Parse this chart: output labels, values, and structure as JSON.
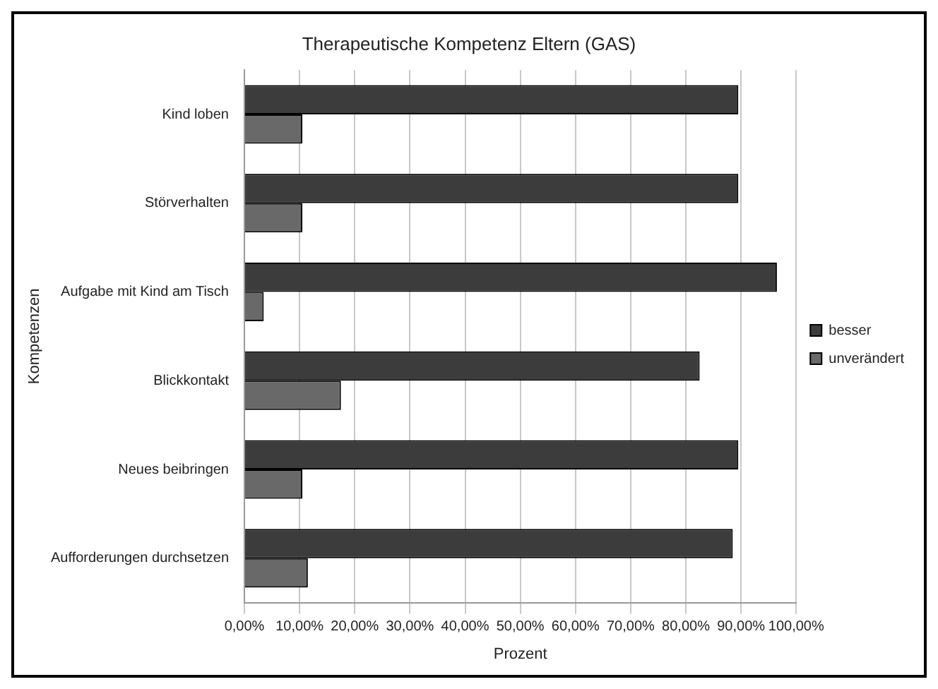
{
  "chart_data": {
    "type": "bar",
    "orientation": "horizontal",
    "title": "Therapeutische Kompetenz Eltern (GAS)",
    "xlabel": "Prozent",
    "ylabel": "Kompetenzen",
    "categories": [
      "Kind loben",
      "Störverhalten",
      "Aufgabe mit Kind am Tisch",
      "Blickkontakt",
      "Neues beibringen",
      "Aufforderungen durchsetzen"
    ],
    "series": [
      {
        "name": "besser",
        "color": "#3c3c3c",
        "values": [
          89.5,
          89.5,
          96.5,
          82.5,
          89.5,
          88.5
        ]
      },
      {
        "name": "unverändert",
        "color": "#696969",
        "values": [
          10.5,
          10.5,
          3.5,
          17.5,
          10.5,
          11.5
        ]
      }
    ],
    "xlim": [
      0,
      100
    ],
    "xticks": [
      {
        "value": 0,
        "label": "0,00%"
      },
      {
        "value": 10,
        "label": "10,00%"
      },
      {
        "value": 20,
        "label": "20,00%"
      },
      {
        "value": 30,
        "label": "30,00%"
      },
      {
        "value": 40,
        "label": "40,00%"
      },
      {
        "value": 50,
        "label": "50,00%"
      },
      {
        "value": 60,
        "label": "60,00%"
      },
      {
        "value": 70,
        "label": "70,00%"
      },
      {
        "value": 80,
        "label": "80,00%"
      },
      {
        "value": 90,
        "label": "90,00%"
      },
      {
        "value": 100,
        "label": "100,00%"
      }
    ],
    "grid": "x",
    "legend": "right"
  }
}
